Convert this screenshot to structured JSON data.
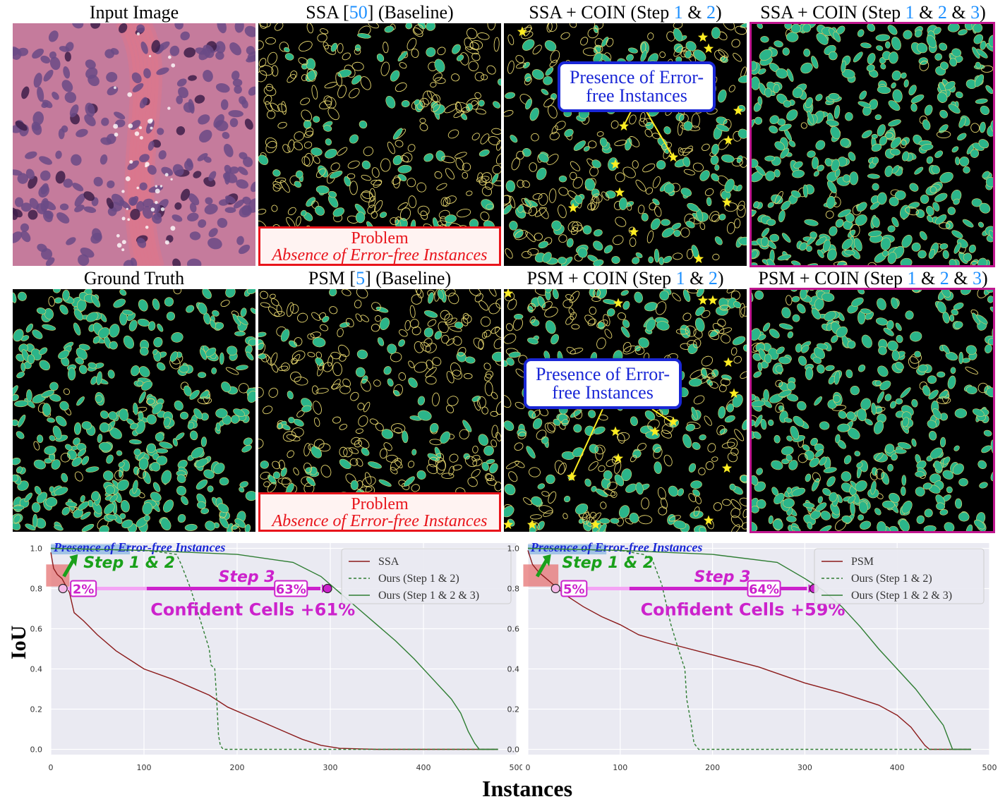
{
  "titles": {
    "input": "Input Image",
    "ssa_base": {
      "pre": "SSA [",
      "ref": "50",
      "post": "] (Baseline)"
    },
    "ssa_coin12": {
      "pre": "SSA + COIN (Step ",
      "a": "1",
      "mid": " & ",
      "b": "2",
      "post": ")"
    },
    "ssa_coin123": {
      "pre": "SSA + COIN (Step ",
      "a": "1",
      "mid1": " & ",
      "b": "2",
      "mid2": " & ",
      "c": "3",
      "post": ")"
    },
    "gt": "Ground Truth",
    "psm_base": {
      "pre": "PSM [",
      "ref": "5",
      "post": "] (Baseline)"
    },
    "psm_coin12": {
      "pre": "PSM + COIN (Step ",
      "a": "1",
      "mid": " & ",
      "b": "2",
      "post": ")"
    },
    "psm_coin123": {
      "pre": "PSM + COIN (Step ",
      "a": "1",
      "mid1": " & ",
      "b": "2",
      "mid2": " & ",
      "c": "3",
      "post": ")"
    }
  },
  "problem": {
    "line1": "Problem",
    "line2": "Absence of Error-free Instances"
  },
  "callout": {
    "line1": "Presence of Error-",
    "line2": "free Instances"
  },
  "colors": {
    "cell_fill": "#2bb58a",
    "cell_outline": "#e6d66e",
    "star": "#ffee22",
    "problem_red": "#e8141b",
    "callout_blue": "#1a27d6",
    "frame_magenta": "#c0168f",
    "plot_bg": "#eaeaf2",
    "ssa_red": "#8b1a1a",
    "ours_green": "#2e7d32",
    "step_green": "#1aa01a",
    "magenta": "#cc22cc"
  },
  "axes": {
    "ylabel": "IoU",
    "xlabel": "Instances"
  },
  "annotations": {
    "presence": "Presence of Error-free Instances",
    "step12": "Step 1 & 2",
    "step3": "Step 3"
  },
  "chart_data": [
    {
      "type": "line",
      "xlim": [
        0,
        500
      ],
      "ylim": [
        0,
        1.0
      ],
      "xticks": [
        0,
        100,
        200,
        300,
        400,
        500
      ],
      "yticks": [
        0.0,
        0.2,
        0.4,
        0.6,
        0.8,
        1.0
      ],
      "grid": true,
      "legend_position": "top-right",
      "series": [
        {
          "name": "SSA",
          "style": "solid",
          "color": "#8b1a1a",
          "points": [
            [
              0,
              0.98
            ],
            [
              3,
              0.9
            ],
            [
              7,
              0.87
            ],
            [
              12,
              0.85
            ],
            [
              20,
              0.78
            ],
            [
              25,
              0.68
            ],
            [
              35,
              0.64
            ],
            [
              50,
              0.57
            ],
            [
              70,
              0.49
            ],
            [
              90,
              0.43
            ],
            [
              100,
              0.4
            ],
            [
              130,
              0.35
            ],
            [
              150,
              0.31
            ],
            [
              170,
              0.27
            ],
            [
              190,
              0.21
            ],
            [
              210,
              0.17
            ],
            [
              230,
              0.13
            ],
            [
              250,
              0.09
            ],
            [
              270,
              0.05
            ],
            [
              290,
              0.02
            ],
            [
              310,
              0.005
            ],
            [
              350,
              0.0
            ],
            [
              480,
              0.0
            ]
          ]
        },
        {
          "name": "Ours (Step 1 & 2)",
          "style": "dashed",
          "color": "#2e7d32",
          "points": [
            [
              0,
              1.0
            ],
            [
              100,
              0.99
            ],
            [
              120,
              0.98
            ],
            [
              135,
              0.97
            ],
            [
              140,
              0.92
            ],
            [
              150,
              0.8
            ],
            [
              160,
              0.65
            ],
            [
              170,
              0.5
            ],
            [
              172,
              0.42
            ],
            [
              176,
              0.4
            ],
            [
              178,
              0.25
            ],
            [
              180,
              0.07
            ],
            [
              182,
              0.02
            ],
            [
              185,
              0.0
            ],
            [
              480,
              0.0
            ]
          ]
        },
        {
          "name": "Ours (Step 1 & 2 & 3)",
          "style": "solid",
          "color": "#2e7d32",
          "points": [
            [
              0,
              1.0
            ],
            [
              100,
              0.99
            ],
            [
              200,
              0.97
            ],
            [
              260,
              0.93
            ],
            [
              290,
              0.86
            ],
            [
              310,
              0.78
            ],
            [
              330,
              0.7
            ],
            [
              350,
              0.62
            ],
            [
              370,
              0.54
            ],
            [
              390,
              0.45
            ],
            [
              410,
              0.35
            ],
            [
              430,
              0.25
            ],
            [
              440,
              0.18
            ],
            [
              448,
              0.09
            ],
            [
              455,
              0.03
            ],
            [
              460,
              0.0
            ],
            [
              480,
              0.0
            ]
          ]
        }
      ],
      "labels": {
        "left_pct": "2%",
        "right_pct": "63%",
        "confident": "Confident Cells +61%"
      },
      "markers": {
        "left_x": 13,
        "right_x": 297,
        "y": 0.8
      }
    },
    {
      "type": "line",
      "xlim": [
        0,
        500
      ],
      "ylim": [
        0,
        1.0
      ],
      "xticks": [
        0,
        100,
        200,
        300,
        400,
        500
      ],
      "yticks": [
        0.0,
        0.2,
        0.4,
        0.6,
        0.8,
        1.0
      ],
      "grid": true,
      "legend_position": "top-right",
      "series": [
        {
          "name": "PSM",
          "style": "solid",
          "color": "#8b1a1a",
          "points": [
            [
              0,
              0.99
            ],
            [
              5,
              0.92
            ],
            [
              12,
              0.88
            ],
            [
              25,
              0.83
            ],
            [
              40,
              0.77
            ],
            [
              60,
              0.71
            ],
            [
              80,
              0.66
            ],
            [
              100,
              0.62
            ],
            [
              120,
              0.57
            ],
            [
              150,
              0.53
            ],
            [
              200,
              0.47
            ],
            [
              250,
              0.41
            ],
            [
              300,
              0.33
            ],
            [
              340,
              0.28
            ],
            [
              380,
              0.22
            ],
            [
              400,
              0.17
            ],
            [
              415,
              0.11
            ],
            [
              425,
              0.05
            ],
            [
              430,
              0.02
            ],
            [
              435,
              0.0
            ],
            [
              480,
              0.0
            ]
          ]
        },
        {
          "name": "Ours (Step 1 & 2)",
          "style": "dashed",
          "color": "#2e7d32",
          "points": [
            [
              0,
              1.0
            ],
            [
              100,
              0.99
            ],
            [
              125,
              0.97
            ],
            [
              135,
              0.94
            ],
            [
              145,
              0.82
            ],
            [
              155,
              0.62
            ],
            [
              165,
              0.47
            ],
            [
              170,
              0.4
            ],
            [
              172,
              0.25
            ],
            [
              176,
              0.15
            ],
            [
              180,
              0.03
            ],
            [
              185,
              0.0
            ],
            [
              480,
              0.0
            ]
          ]
        },
        {
          "name": "Ours (Step 1 & 2 & 3)",
          "style": "solid",
          "color": "#2e7d32",
          "points": [
            [
              0,
              1.0
            ],
            [
              100,
              0.99
            ],
            [
              200,
              0.97
            ],
            [
              270,
              0.93
            ],
            [
              300,
              0.85
            ],
            [
              320,
              0.79
            ],
            [
              340,
              0.71
            ],
            [
              360,
              0.61
            ],
            [
              380,
              0.5
            ],
            [
              400,
              0.4
            ],
            [
              420,
              0.3
            ],
            [
              440,
              0.18
            ],
            [
              450,
              0.12
            ],
            [
              455,
              0.06
            ],
            [
              460,
              0.0
            ],
            [
              480,
              0.0
            ]
          ]
        }
      ],
      "labels": {
        "left_pct": "5%",
        "right_pct": "64%",
        "confident": "Confident Cells +59%"
      },
      "markers": {
        "left_x": 30,
        "right_x": 310,
        "y": 0.8
      }
    }
  ]
}
